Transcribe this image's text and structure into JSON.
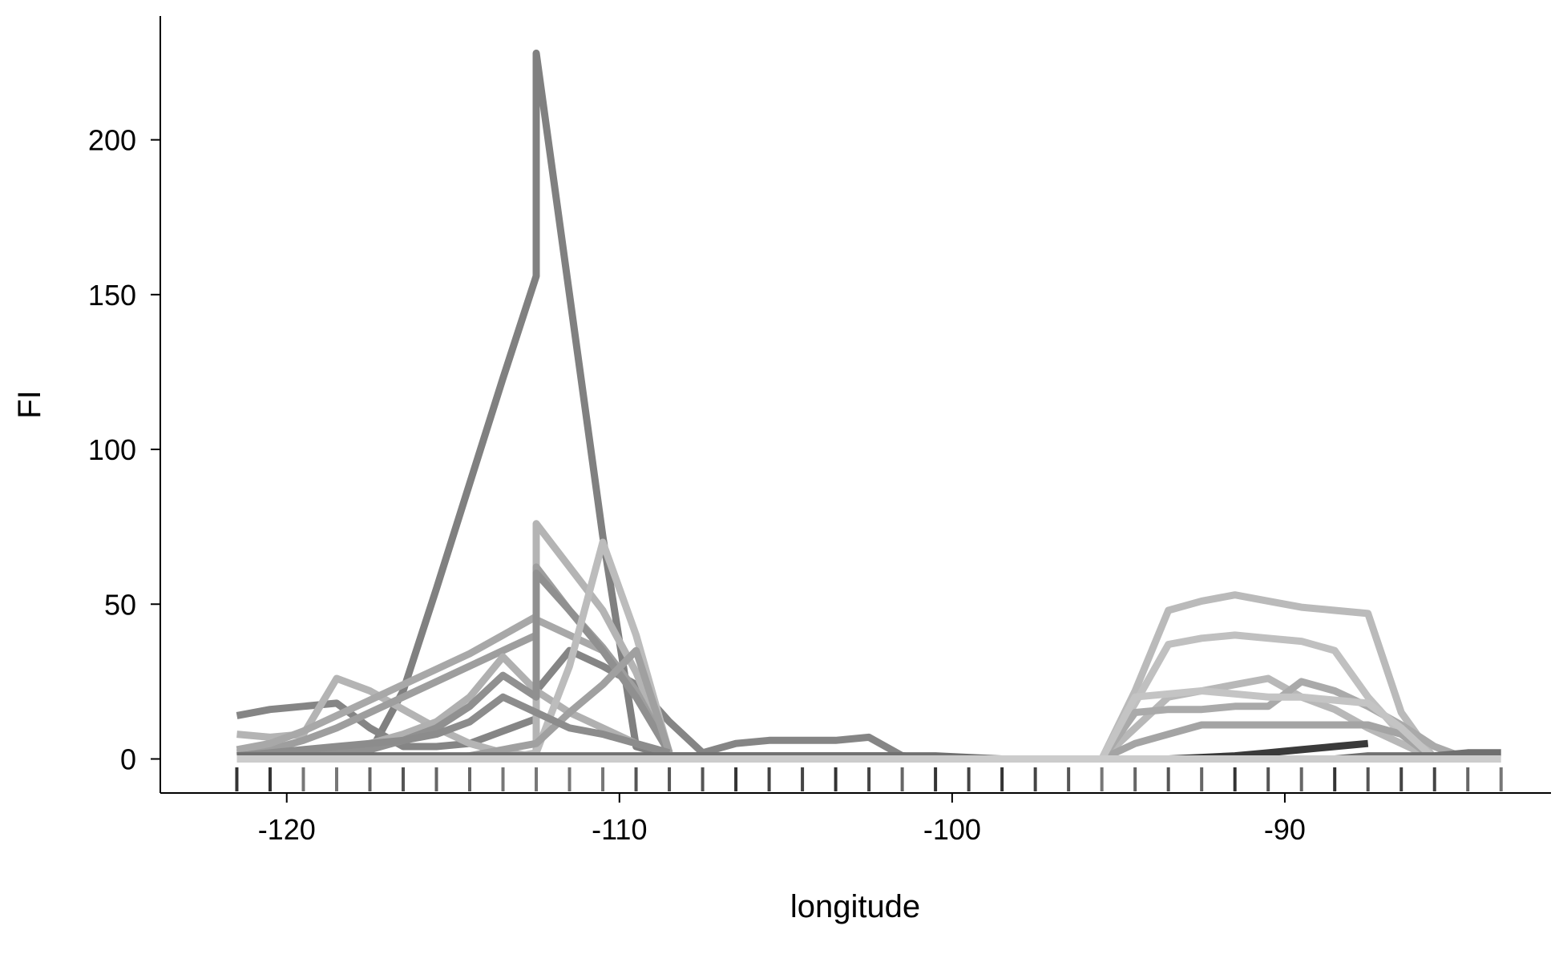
{
  "chart_data": {
    "type": "line",
    "title": "",
    "xlabel": "longitude",
    "ylabel": "FI",
    "xlim": [
      -123.8,
      -82
    ],
    "ylim": [
      -11,
      240
    ],
    "x_ticks": [
      -120,
      -110,
      -100,
      -90
    ],
    "x_tick_labels": [
      "-120",
      "-110",
      "-100",
      "-90"
    ],
    "y_ticks": [
      0,
      50,
      100,
      150,
      200
    ],
    "y_tick_labels": [
      "0",
      "50",
      "100",
      "150",
      "200"
    ],
    "grid": false,
    "legend": "none",
    "rug": {
      "positions": [
        -121.5,
        -120.5,
        -119.5,
        -118.5,
        -117.5,
        -116.5,
        -115.5,
        -114.5,
        -113.5,
        -112.5,
        -111.5,
        -110.5,
        -109.5,
        -108.5,
        -107.5,
        -106.5,
        -105.5,
        -104.5,
        -103.5,
        -102.5,
        -101.5,
        -100.5,
        -99.5,
        -98.5,
        -97.5,
        -96.5,
        -95.5,
        -94.5,
        -93.5,
        -92.5,
        -91.5,
        -90.5,
        -89.5,
        -88.5,
        -87.5,
        -86.5,
        -85.5,
        -84.5,
        -83.5
      ],
      "colors": [
        "#333333",
        "#333333",
        "#777777",
        "#777777",
        "#666666",
        "#555555",
        "#666666",
        "#666666",
        "#777777",
        "#777777",
        "#777777",
        "#777777",
        "#555555",
        "#555555",
        "#555555",
        "#333333",
        "#444444",
        "#444444",
        "#333333",
        "#444444",
        "#666666",
        "#333333",
        "#444444",
        "#333333",
        "#444444",
        "#555555",
        "#777777",
        "#666666",
        "#555555",
        "#666666",
        "#333333",
        "#555555",
        "#666666",
        "#333333",
        "#555555",
        "#444444",
        "#444444",
        "#666666",
        "#777777"
      ]
    },
    "series": [
      {
        "color": "#808080",
        "x": [
          -121.5,
          -120.5,
          -119.5,
          -118.5,
          -117.5,
          -116.5,
          -115.5,
          -114.5,
          -113.5,
          -112.5,
          -112.5,
          -111.5,
          -110.5,
          -109.5,
          -108.5,
          -107.5,
          -106.5,
          -105.5,
          -104.5,
          -103.5,
          -102.5,
          -101.5,
          -100.5
        ],
        "y": [
          1,
          1,
          1,
          1,
          2,
          22,
          55,
          89,
          123,
          156,
          228,
          150,
          72,
          4,
          1,
          1,
          1,
          1,
          1,
          1,
          1,
          1,
          0
        ]
      },
      {
        "color": "#858585",
        "x": [
          -121.5,
          -120.5,
          -119.5,
          -118.5,
          -117.5,
          -116.5,
          -115.5,
          -114.5,
          -113.5,
          -112.5,
          -112.5,
          -111.5,
          -110.5,
          -109.5,
          -108.5,
          -107.5,
          -106.5,
          -105.5,
          -104.5,
          -103.5,
          -102.5,
          -101.5,
          -100.5
        ],
        "y": [
          14,
          16,
          17,
          18,
          10,
          4,
          4,
          5,
          9,
          13,
          22,
          35,
          30,
          24,
          12,
          2,
          5,
          6,
          6,
          6,
          7,
          1,
          0
        ]
      },
      {
        "color": "#b4b4b4",
        "x": [
          -121.5,
          -120.5,
          -119.5,
          -118.5,
          -117.5,
          -116.5,
          -115.5,
          -114.5,
          -113.5,
          -112.5,
          -112.5,
          -111.5,
          -110.5,
          -109.5,
          -108.5
        ],
        "y": [
          8,
          7,
          8,
          26,
          22,
          16,
          10,
          5,
          2,
          1,
          76,
          62,
          48,
          28,
          2
        ]
      },
      {
        "color": "#9e9e9e",
        "x": [
          -121.5,
          -120.5,
          -119.5,
          -118.5,
          -117.5,
          -116.5,
          -115.5,
          -114.5,
          -113.5,
          -112.5,
          -112.5,
          -111.5,
          -110.5,
          -109.5,
          -108.5
        ],
        "y": [
          2,
          3,
          6,
          10,
          15,
          20,
          25,
          30,
          35,
          40,
          62,
          48,
          36,
          22,
          2
        ]
      },
      {
        "color": "#a8a8a8",
        "x": [
          -121.5,
          -120.5,
          -119.5,
          -118.5,
          -117.5,
          -116.5,
          -115.5,
          -114.5,
          -113.5,
          -112.5,
          -112.5,
          -111.5,
          -110.5,
          -109.5,
          -108.5
        ],
        "y": [
          3,
          5,
          9,
          14,
          19,
          24,
          29,
          34,
          40,
          46,
          45,
          40,
          35,
          20,
          2
        ]
      },
      {
        "color": "#b0b0b0",
        "x": [
          -121.5,
          -120.5,
          -119.5,
          -118.5,
          -117.5,
          -116.5,
          -115.5,
          -114.5,
          -113.5,
          -112.5,
          -111.5,
          -110.5,
          -109.5,
          -108.5
        ],
        "y": [
          1,
          1,
          2,
          3,
          5,
          8,
          12,
          20,
          33,
          22,
          15,
          10,
          5,
          2
        ]
      },
      {
        "color": "#909090",
        "x": [
          -121.5,
          -120.5,
          -119.5,
          -118.5,
          -117.5,
          -116.5,
          -115.5,
          -114.5,
          -113.5,
          -112.5,
          -112.5,
          -111.5,
          -110.5,
          -109.5,
          -108.5
        ],
        "y": [
          1,
          1,
          1,
          2,
          3,
          6,
          10,
          17,
          27,
          20,
          60,
          48,
          35,
          20,
          2
        ]
      },
      {
        "color": "#bcbcbc",
        "x": [
          -121.5,
          -120.5,
          -119.5,
          -118.5,
          -117.5,
          -116.5,
          -115.5,
          -114.5,
          -113.5,
          -112.5,
          -111.5,
          -110.5,
          -109.5,
          -108.5
        ],
        "y": [
          0,
          0,
          0,
          0,
          0,
          0,
          0,
          0,
          0,
          2,
          30,
          70,
          40,
          2
        ]
      },
      {
        "color": "#a0a0a0",
        "x": [
          -121.5,
          -120.5,
          -119.5,
          -118.5,
          -117.5,
          -116.5,
          -115.5,
          -114.5,
          -113.5,
          -112.5,
          -111.5,
          -110.5,
          -109.5,
          -108.5
        ],
        "y": [
          0,
          0,
          0,
          0,
          0,
          0,
          0,
          1,
          3,
          5,
          15,
          24,
          35,
          2
        ]
      },
      {
        "color": "#8c8c8c",
        "x": [
          -121.5,
          -120.5,
          -119.5,
          -118.5,
          -117.5,
          -116.5,
          -115.5,
          -114.5,
          -113.5,
          -112.5,
          -111.5,
          -110.5,
          -109.5,
          -108.5
        ],
        "y": [
          1,
          2,
          3,
          4,
          5,
          6,
          8,
          12,
          20,
          15,
          10,
          8,
          5,
          2
        ]
      },
      {
        "color": "#bababa",
        "x": [
          -95.5,
          -94.5,
          -93.5,
          -92.5,
          -91.5,
          -90.5,
          -89.5,
          -88.5,
          -87.5,
          -86.5,
          -85.5
        ],
        "y": [
          0,
          22,
          48,
          51,
          53,
          51,
          49,
          48,
          47,
          15,
          0
        ]
      },
      {
        "color": "#c0c0c0",
        "x": [
          -95.5,
          -94.5,
          -93.5,
          -92.5,
          -91.5,
          -90.5,
          -89.5,
          -88.5,
          -87.5,
          -86.5,
          -85.5
        ],
        "y": [
          0,
          18,
          37,
          39,
          40,
          39,
          38,
          35,
          20,
          8,
          0
        ]
      },
      {
        "color": "#b8b8b8",
        "x": [
          -95.5,
          -94.5,
          -93.5,
          -92.5,
          -91.5,
          -90.5,
          -89.5,
          -88.5,
          -87.5,
          -86.5,
          -85.5
        ],
        "y": [
          0,
          10,
          20,
          22,
          24,
          26,
          20,
          16,
          10,
          5,
          0
        ]
      },
      {
        "color": "#aaaaaa",
        "x": [
          -95.5,
          -94.5,
          -93.5,
          -92.5,
          -91.5,
          -90.5,
          -89.5,
          -88.5,
          -87.5,
          -86.5,
          -85.5,
          -84.5
        ],
        "y": [
          0,
          15,
          16,
          16,
          17,
          17,
          25,
          22,
          17,
          11,
          4,
          0
        ]
      },
      {
        "color": "#a4a4a4",
        "x": [
          -95.5,
          -94.5,
          -93.5,
          -92.5,
          -91.5,
          -90.5,
          -89.5,
          -88.5,
          -87.5,
          -86.5,
          -85.5
        ],
        "y": [
          0,
          5,
          8,
          11,
          11,
          11,
          11,
          11,
          11,
          8,
          0
        ]
      },
      {
        "color": "#c4c4c4",
        "x": [
          -95.5,
          -94.5,
          -93.5,
          -92.5,
          -91.5,
          -90.5,
          -89.5,
          -88.5,
          -87.5,
          -86.5,
          -85.5
        ],
        "y": [
          0,
          20,
          21,
          22,
          21,
          20,
          20,
          19,
          18,
          10,
          0
        ]
      },
      {
        "color": "#3a3a3a",
        "x": [
          -93.5,
          -92.5,
          -91.5,
          -90.5,
          -89.5,
          -88.5,
          -87.5
        ],
        "y": [
          0,
          0.5,
          1,
          2,
          3,
          4,
          5
        ]
      },
      {
        "color": "#707070",
        "x": [
          -121.5,
          -120.5,
          -119.5,
          -118.5,
          -117.5,
          -116.5,
          -115.5,
          -114.5,
          -113.5,
          -112.5,
          -111.5,
          -110.5,
          -109.5,
          -108.5,
          -107.5,
          -106.5,
          -105.5,
          -104.5,
          -103.5,
          -102.5,
          -101.5,
          -100.5,
          -99.5,
          -98.5,
          -97.5,
          -96.5,
          -95.5,
          -94.5,
          -93.5,
          -92.5,
          -91.5,
          -90.5,
          -89.5,
          -88.5,
          -87.5,
          -86.5,
          -85.5,
          -84.5,
          -83.5
        ],
        "y": [
          1,
          1,
          1,
          1,
          1,
          1,
          1,
          1,
          1,
          1,
          1,
          1,
          1,
          1,
          1,
          1,
          1,
          1,
          1,
          1,
          1,
          1,
          0.5,
          0,
          0,
          0,
          0,
          0,
          0,
          0,
          0,
          0,
          0,
          0,
          1,
          1,
          1,
          2,
          2
        ]
      },
      {
        "color": "#cccccc",
        "x": [
          -121.5,
          -120.5,
          -119.5,
          -118.5,
          -117.5,
          -116.5,
          -115.5,
          -114.5,
          -113.5,
          -112.5,
          -111.5,
          -110.5,
          -109.5,
          -108.5,
          -107.5,
          -106.5,
          -105.5,
          -104.5,
          -103.5,
          -102.5,
          -101.5,
          -100.5,
          -99.5,
          -98.5,
          -97.5,
          -96.5,
          -95.5,
          -94.5,
          -93.5,
          -92.5,
          -91.5,
          -90.5,
          -89.5,
          -88.5,
          -87.5,
          -86.5,
          -85.5,
          -84.5,
          -83.5
        ],
        "y": [
          0,
          0,
          0,
          0,
          0,
          0,
          0,
          0,
          0,
          0,
          0,
          0,
          0,
          0,
          0,
          0,
          0,
          0,
          0,
          0,
          0,
          0,
          0,
          0,
          0,
          0,
          0,
          0,
          0,
          0,
          0,
          0,
          0,
          0,
          0,
          0,
          0,
          0,
          0
        ]
      }
    ]
  }
}
